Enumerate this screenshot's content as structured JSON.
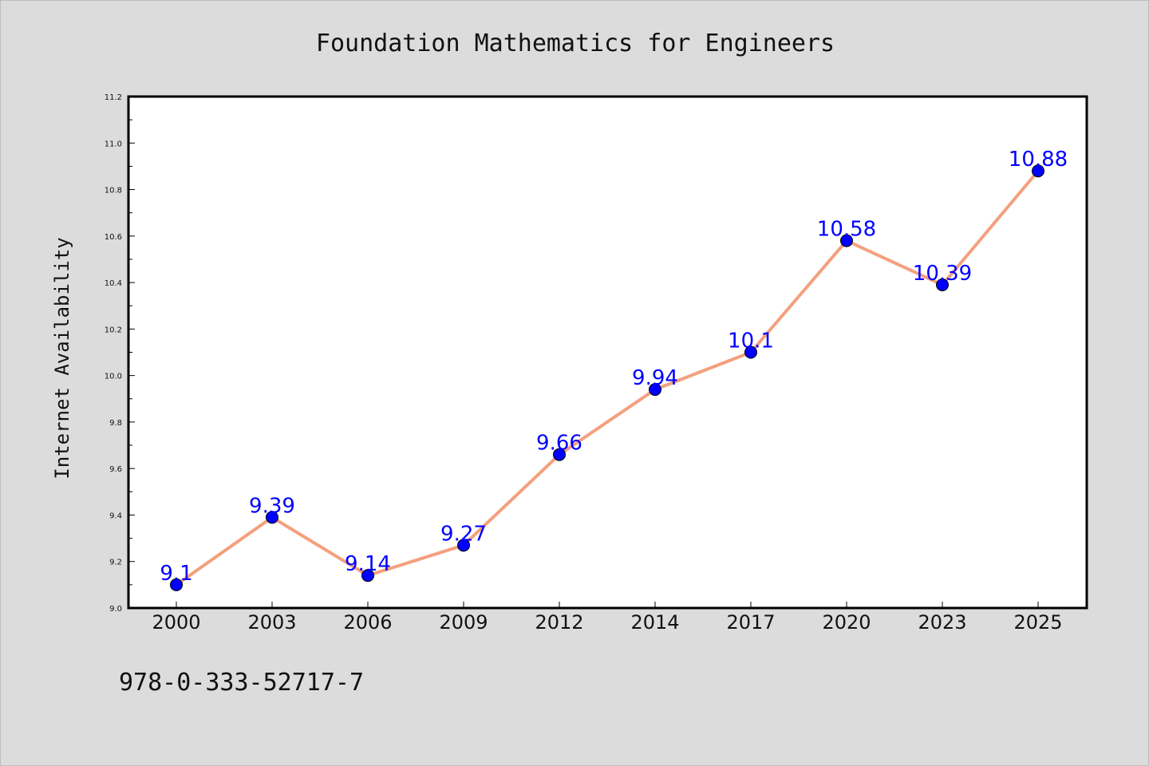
{
  "chart_data": {
    "type": "line",
    "title": "Foundation Mathematics for Engineers",
    "xlabel": "",
    "ylabel": "Internet Availability",
    "categories": [
      "2000",
      "2003",
      "2006",
      "2009",
      "2012",
      "2014",
      "2017",
      "2020",
      "2023",
      "2025"
    ],
    "series": [
      {
        "values": [
          9.1,
          9.39,
          9.14,
          9.27,
          9.66,
          9.94,
          10.1,
          10.58,
          10.39,
          10.88
        ],
        "data_labels": [
          "9.1",
          "9.39",
          "9.14",
          "9.27",
          "9.66",
          "9.94",
          "10.1",
          "10.58",
          "10.39",
          "10.88"
        ]
      }
    ],
    "ylim": [
      9.0,
      11.2
    ],
    "yticks": [
      "9.0",
      "9.2",
      "9.4",
      "9.6",
      "9.8",
      "10.0",
      "10.2",
      "10.4",
      "10.6",
      "10.8",
      "11.0",
      "11.2"
    ],
    "grid": false,
    "legend": "none"
  },
  "footer": {
    "isbn": "978-0-333-52717-7"
  },
  "colors": {
    "background": "#dcdcdc",
    "plot_background": "#ffffff",
    "line": "#f4a07e",
    "marker": "#0000ff",
    "data_label": "#0000ff",
    "axis": "#000000"
  }
}
